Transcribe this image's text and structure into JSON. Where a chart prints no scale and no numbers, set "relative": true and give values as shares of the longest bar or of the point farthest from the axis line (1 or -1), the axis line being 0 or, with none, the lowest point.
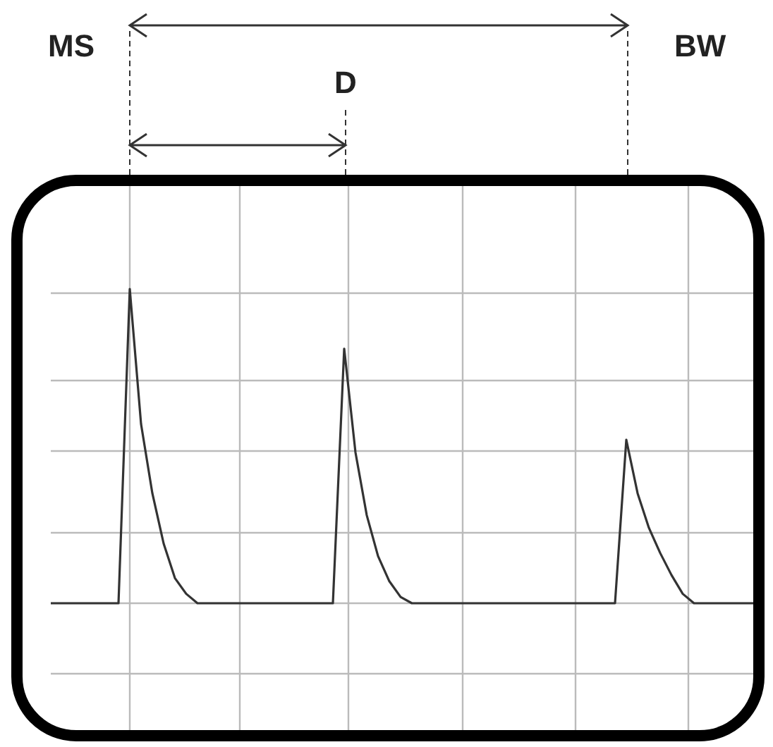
{
  "chart_data": {
    "type": "line",
    "relative": true,
    "grid": true,
    "annotations": [
      "MS",
      "D",
      "BW"
    ],
    "categories": [
      null,
      null,
      null,
      null,
      null,
      null,
      null,
      null,
      null,
      null,
      null,
      null,
      null,
      null,
      null,
      null,
      null,
      null,
      null,
      null,
      null,
      null,
      null,
      null,
      null,
      null,
      null,
      null,
      null,
      null,
      null,
      null,
      null,
      null,
      null,
      null,
      null,
      null,
      null,
      null,
      null,
      null,
      null,
      null,
      null,
      null,
      null,
      null,
      null,
      null,
      null,
      null,
      null,
      null,
      null,
      null,
      null,
      null,
      null,
      null,
      null,
      null,
      null,
      null
    ],
    "series": [
      {
        "color": "#333333",
        "values": [
          0,
          0,
          0,
          0,
          0,
          0,
          0,
          1,
          0.57,
          0.35,
          0.19,
          0.08,
          0.03,
          0,
          0,
          0,
          0,
          0,
          0,
          0,
          0,
          0,
          0,
          0,
          0,
          0,
          0.81,
          0.48,
          0.28,
          0.15,
          0.07,
          0.02,
          0,
          0,
          0,
          0,
          0,
          0,
          0,
          0,
          0,
          0,
          0,
          0,
          0,
          0,
          0,
          0,
          0,
          0,
          0,
          0.52,
          0.35,
          0.24,
          0.16,
          0.09,
          0.03,
          0,
          0,
          0,
          0,
          0,
          0,
          0
        ]
      }
    ]
  }
}
